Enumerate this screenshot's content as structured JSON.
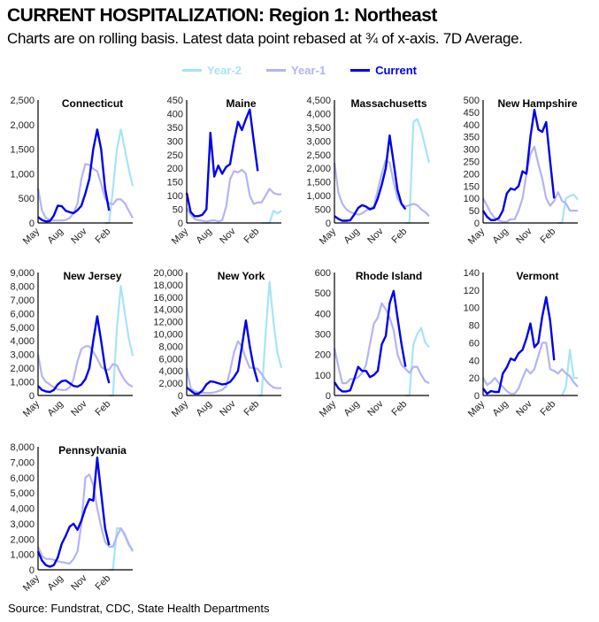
{
  "title": "CURRENT HOSPITALIZATION:  Region 1: Northeast",
  "subtitle": "Charts are on rolling basis. Latest data point rebased at ¾ of x-axis. 7D Average.",
  "source": "Source: Fundstrat, CDC, State Health Departments",
  "legend": [
    {
      "name": "Year-2",
      "color": "#a8e4f4"
    },
    {
      "name": "Year-1",
      "color": "#b4b4f6"
    },
    {
      "name": "Current",
      "color": "#0000ee"
    }
  ],
  "chart_data": {
    "type": "line",
    "x": [
      "May 1",
      "May 15",
      "Jun 1",
      "Jun 15",
      "Jul 1",
      "Jul 15",
      "Aug 1",
      "Aug 15",
      "Sep 1",
      "Sep 15",
      "Oct 1",
      "Oct 15",
      "Nov 1",
      "Nov 15",
      "Dec 1",
      "Dec 15",
      "Jan 1",
      "Jan 15",
      "Feb 1",
      "Feb 15",
      "Mar 1",
      "Mar 15",
      "Apr 1",
      "Apr 15",
      "May 1"
    ],
    "x_ticks": [
      "May",
      "Aug",
      "Nov",
      "Feb"
    ],
    "legend_position": "top",
    "grid": false,
    "panels": [
      {
        "title": "Connecticut",
        "ylim": [
          0,
          2500
        ],
        "yticks": [
          "0",
          "500",
          "1,000",
          "1,500",
          "2,000",
          "2,500"
        ],
        "series": {
          "Year-2": [
            null,
            null,
            null,
            null,
            null,
            null,
            null,
            null,
            null,
            null,
            null,
            null,
            null,
            null,
            null,
            null,
            null,
            0,
            0,
            700,
            1500,
            1900,
            1500,
            1100,
            750
          ],
          "Year-1": [
            700,
            250,
            100,
            60,
            50,
            50,
            50,
            60,
            100,
            200,
            400,
            900,
            1200,
            1180,
            1100,
            1050,
            800,
            500,
            400,
            380,
            480,
            480,
            400,
            250,
            100
          ],
          "Current": [
            120,
            60,
            30,
            40,
            150,
            350,
            340,
            250,
            220,
            200,
            260,
            350,
            600,
            900,
            1500,
            1900,
            1500,
            700,
            250
          ]
        }
      },
      {
        "title": "Maine",
        "ylim": [
          0,
          450
        ],
        "yticks": [
          "0",
          "50",
          "100",
          "150",
          "200",
          "250",
          "300",
          "350",
          "400",
          "450"
        ],
        "series": {
          "Year-2": [
            null,
            null,
            null,
            null,
            null,
            null,
            null,
            null,
            null,
            null,
            null,
            null,
            null,
            null,
            null,
            null,
            null,
            null,
            null,
            0,
            0,
            0,
            45,
            35,
            45
          ],
          "Year-1": [
            55,
            30,
            15,
            10,
            8,
            5,
            8,
            10,
            5,
            10,
            60,
            160,
            190,
            185,
            195,
            180,
            100,
            70,
            75,
            75,
            100,
            125,
            110,
            105,
            105
          ],
          "Current": [
            110,
            40,
            25,
            25,
            30,
            50,
            330,
            170,
            210,
            180,
            205,
            215,
            300,
            370,
            340,
            380,
            415,
            300,
            190
          ]
        }
      },
      {
        "title": "Massachusetts",
        "ylim": [
          0,
          4500
        ],
        "yticks": [
          "0",
          "500",
          "1,000",
          "1,500",
          "2,000",
          "2,500",
          "3,000",
          "3,500",
          "4,000",
          "4,500"
        ],
        "series": {
          "Year-2": [
            null,
            null,
            null,
            null,
            null,
            null,
            null,
            null,
            null,
            null,
            null,
            null,
            null,
            null,
            null,
            null,
            null,
            null,
            0,
            0,
            3700,
            3800,
            3400,
            2800,
            2200
          ],
          "Year-1": [
            2200,
            1100,
            700,
            500,
            400,
            350,
            300,
            350,
            450,
            550,
            600,
            1200,
            1800,
            2300,
            2200,
            1500,
            900,
            700,
            600,
            650,
            700,
            650,
            500,
            400,
            250
          ],
          "Current": [
            250,
            150,
            80,
            80,
            100,
            300,
            550,
            650,
            600,
            500,
            550,
            900,
            1400,
            2000,
            3200,
            2200,
            1200,
            700,
            500
          ]
        }
      },
      {
        "title": "New Hampshire",
        "ylim": [
          0,
          500
        ],
        "yticks": [
          "0",
          "50",
          "100",
          "150",
          "200",
          "250",
          "300",
          "350",
          "400",
          "450",
          "500"
        ],
        "series": {
          "Year-2": [
            null,
            null,
            null,
            null,
            null,
            null,
            null,
            null,
            null,
            null,
            null,
            null,
            null,
            null,
            null,
            null,
            null,
            null,
            null,
            0,
            0,
            100,
            110,
            115,
            95
          ],
          "Year-1": [
            100,
            70,
            40,
            20,
            10,
            5,
            5,
            15,
            15,
            50,
            100,
            200,
            280,
            310,
            240,
            180,
            100,
            70,
            90,
            125,
            90,
            80,
            50,
            50,
            50
          ],
          "Current": [
            50,
            25,
            12,
            12,
            20,
            50,
            120,
            140,
            135,
            150,
            210,
            200,
            350,
            460,
            380,
            370,
            410,
            250,
            100
          ]
        }
      },
      {
        "title": "New Jersey",
        "ylim": [
          0,
          9000
        ],
        "yticks": [
          "0",
          "1,000",
          "2,000",
          "3,000",
          "4,000",
          "5,000",
          "6,000",
          "7,000",
          "8,000",
          "9,000"
        ],
        "series": {
          "Year-2": [
            null,
            null,
            null,
            null,
            null,
            null,
            null,
            null,
            null,
            null,
            null,
            null,
            null,
            null,
            null,
            null,
            null,
            null,
            0,
            0,
            5000,
            8000,
            6000,
            4200,
            2900
          ],
          "Year-1": [
            3000,
            1400,
            1000,
            800,
            600,
            450,
            400,
            400,
            600,
            1200,
            2500,
            3400,
            3600,
            3600,
            3200,
            2700,
            2100,
            1900,
            1900,
            2300,
            2200,
            1600,
            1100,
            800,
            650
          ],
          "Current": [
            700,
            400,
            300,
            250,
            400,
            800,
            1050,
            1100,
            900,
            700,
            650,
            800,
            1200,
            2000,
            4000,
            5800,
            4000,
            2000,
            900
          ]
        }
      },
      {
        "title": "New York",
        "ylim": [
          0,
          20000
        ],
        "yticks": [
          "0",
          "2,000",
          "4,000",
          "6,000",
          "8,000",
          "10,000",
          "12,000",
          "14,000",
          "16,000",
          "18,000",
          "20,000"
        ],
        "series": {
          "Year-2": [
            null,
            null,
            null,
            null,
            null,
            null,
            null,
            null,
            null,
            null,
            null,
            null,
            null,
            null,
            null,
            null,
            null,
            null,
            0,
            0,
            10000,
            18500,
            12000,
            7000,
            4500
          ],
          "Year-1": [
            4500,
            1200,
            700,
            500,
            450,
            400,
            400,
            500,
            700,
            900,
            1500,
            4000,
            7000,
            8800,
            8000,
            6000,
            4500,
            4500,
            4300,
            3500,
            2500,
            1800,
            1300,
            1200,
            1200
          ],
          "Current": [
            1300,
            800,
            300,
            300,
            800,
            1800,
            2300,
            2200,
            2000,
            1800,
            1900,
            2200,
            3000,
            4000,
            8000,
            12200,
            8000,
            4500,
            2200
          ]
        }
      },
      {
        "title": "Rhode Island",
        "ylim": [
          0,
          600
        ],
        "yticks": [
          "0",
          "100",
          "200",
          "300",
          "400",
          "500",
          "600"
        ],
        "series": {
          "Year-2": [
            null,
            null,
            null,
            null,
            null,
            null,
            null,
            null,
            null,
            null,
            null,
            null,
            null,
            null,
            null,
            null,
            null,
            null,
            0,
            0,
            250,
            300,
            330,
            260,
            235
          ],
          "Year-1": [
            230,
            140,
            60,
            60,
            80,
            80,
            90,
            110,
            150,
            250,
            350,
            380,
            450,
            420,
            380,
            320,
            200,
            150,
            130,
            110,
            140,
            140,
            100,
            70,
            60
          ],
          "Current": [
            65,
            35,
            20,
            20,
            25,
            80,
            140,
            120,
            120,
            90,
            100,
            120,
            250,
            290,
            450,
            510,
            380,
            250,
            140
          ]
        }
      },
      {
        "title": "Vermont",
        "ylim": [
          0,
          140
        ],
        "yticks": [
          "0",
          "20",
          "40",
          "60",
          "80",
          "100",
          "120",
          "140"
        ],
        "series": {
          "Year-2": [
            null,
            null,
            null,
            null,
            null,
            null,
            null,
            null,
            null,
            null,
            null,
            null,
            null,
            null,
            null,
            null,
            null,
            null,
            null,
            null,
            0,
            10,
            52,
            20,
            20
          ],
          "Year-1": [
            20,
            12,
            15,
            20,
            14,
            10,
            5,
            2,
            2,
            8,
            20,
            30,
            25,
            30,
            45,
            60,
            60,
            30,
            28,
            25,
            30,
            25,
            22,
            15,
            10
          ],
          "Current": [
            8,
            2,
            5,
            4,
            4,
            25,
            32,
            42,
            40,
            48,
            52,
            65,
            82,
            55,
            60,
            90,
            112,
            85,
            40
          ]
        }
      },
      {
        "title": "Pennsylvania",
        "ylim": [
          0,
          8000
        ],
        "yticks": [
          "0",
          "1,000",
          "2,000",
          "3,000",
          "4,000",
          "5,000",
          "6,000",
          "7,000",
          "8,000"
        ],
        "series": {
          "Year-2": [
            null,
            null,
            null,
            null,
            null,
            null,
            null,
            null,
            null,
            null,
            null,
            null,
            null,
            null,
            null,
            null,
            null,
            null,
            0,
            0,
            2700,
            2700,
            2200,
            1600,
            1300
          ],
          "Year-1": [
            1500,
            900,
            700,
            700,
            650,
            550,
            500,
            450,
            400,
            700,
            1200,
            3000,
            6000,
            6200,
            5500,
            4000,
            2800,
            1800,
            1500,
            1500,
            2200,
            2700,
            2300,
            1700,
            1200
          ],
          "Current": [
            1200,
            600,
            300,
            200,
            300,
            800,
            1700,
            2200,
            2800,
            3000,
            2600,
            3200,
            4000,
            4600,
            4500,
            7300,
            5000,
            2700,
            1600
          ]
        }
      }
    ]
  }
}
